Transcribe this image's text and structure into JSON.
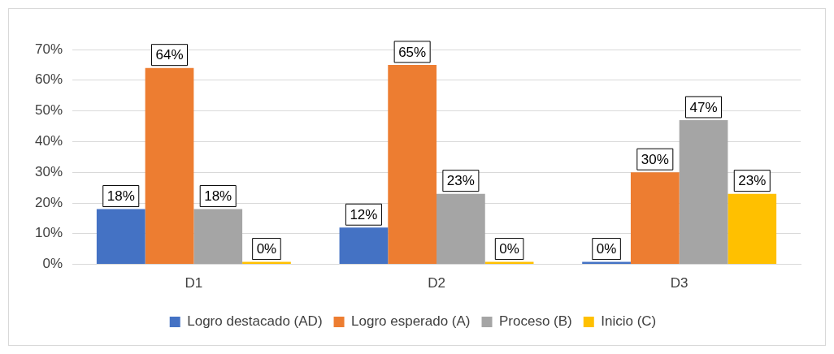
{
  "chart_data": {
    "type": "bar",
    "categories": [
      "D1",
      "D2",
      "D3"
    ],
    "series": [
      {
        "name": "Logro destacado (AD)",
        "color": "#4472c4",
        "values": [
          18,
          12,
          0
        ],
        "value_labels": [
          "18%",
          "12%",
          "0%"
        ]
      },
      {
        "name": "Logro esperado (A)",
        "color": "#ed7d31",
        "values": [
          64,
          65,
          30
        ],
        "value_labels": [
          "64%",
          "65%",
          "30%"
        ]
      },
      {
        "name": "Proceso (B)",
        "color": "#a5a5a5",
        "values": [
          18,
          23,
          47
        ],
        "value_labels": [
          "18%",
          "23%",
          "47%"
        ]
      },
      {
        "name": "Inicio (C)",
        "color": "#ffc000",
        "values": [
          0,
          0,
          23
        ],
        "value_labels": [
          "0%",
          "0%",
          "23%"
        ]
      }
    ],
    "ylim": [
      0,
      70
    ],
    "yticks": [
      {
        "value": 0,
        "label": "0%"
      },
      {
        "value": 10,
        "label": "10%"
      },
      {
        "value": 20,
        "label": "20%"
      },
      {
        "value": 30,
        "label": "30%"
      },
      {
        "value": 40,
        "label": "40%"
      },
      {
        "value": 50,
        "label": "50%"
      },
      {
        "value": 60,
        "label": "60%"
      },
      {
        "value": 70,
        "label": "70%"
      }
    ],
    "grid": "y",
    "legend": "bottom"
  }
}
